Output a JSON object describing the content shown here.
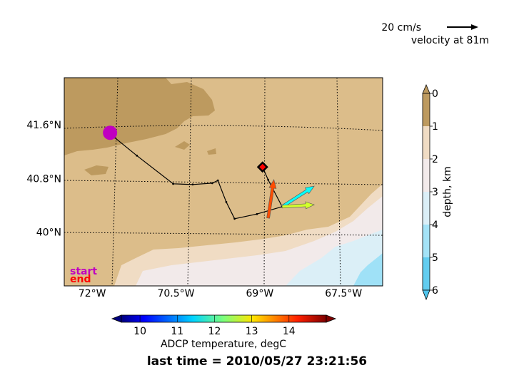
{
  "scale": {
    "label": "20 cm/s",
    "caption": "velocity at 81m"
  },
  "map": {
    "lon_ticks": [
      {
        "value": -72,
        "label": "72°W"
      },
      {
        "value": -70.5,
        "label": "70.5°W"
      },
      {
        "value": -69,
        "label": "69°W"
      },
      {
        "value": -67.5,
        "label": "67.5°W"
      }
    ],
    "lat_ticks": [
      {
        "value": 41.6,
        "label": "41.6°N"
      },
      {
        "value": 40.8,
        "label": "40.8°N"
      },
      {
        "value": 40.0,
        "label": "40°N"
      }
    ],
    "start_label": "start",
    "end_label": "end",
    "colors": {
      "start": "#c000c0",
      "end": "#ff0000",
      "land": "#bd9a5f",
      "shelf": "#dcbd8a",
      "slope": "#f0dcc4",
      "deep": "#f2eaea",
      "abyss": "#dbeff7",
      "trench": "#9fe1f7"
    }
  },
  "depth_colorbar": {
    "label": "depth, km",
    "ticks": [
      "0",
      "1",
      "2",
      "3",
      "4",
      "5",
      "6"
    ]
  },
  "temp_colorbar": {
    "label": "ADCP temperature, degC",
    "ticks": [
      "10",
      "11",
      "12",
      "13",
      "14"
    ]
  },
  "footer": {
    "last_time": "last time = 2010/05/27 23:21:56"
  },
  "chart_data": {
    "type": "map",
    "track": [
      [
        -71.6,
        41.41
      ],
      [
        -71.2,
        41.14
      ],
      [
        -70.55,
        40.72
      ],
      [
        -70.2,
        40.71
      ],
      [
        -69.85,
        40.73
      ],
      [
        -69.75,
        40.77
      ],
      [
        -69.6,
        40.45
      ],
      [
        -69.45,
        40.2
      ],
      [
        -69.05,
        40.27
      ],
      [
        -68.6,
        40.38
      ],
      [
        -68.85,
        40.78
      ],
      [
        -68.95,
        40.97
      ]
    ],
    "start": {
      "lon": -71.68,
      "lat": 41.48
    },
    "end": {
      "lon": -68.95,
      "lat": 40.97
    },
    "vectors": [
      {
        "lon": -68.85,
        "lat": 40.21,
        "u": 0.09,
        "v": 0.6,
        "temp": 13.9
      },
      {
        "lon": -68.6,
        "lat": 40.38,
        "u": 0.5,
        "v": 0.32,
        "temp": 11.6
      },
      {
        "lon": -68.6,
        "lat": 40.38,
        "u": 0.5,
        "v": 0.03,
        "temp": 12.7
      }
    ],
    "lon_range": [
      -72.5,
      -66.8
    ],
    "lat_range": [
      39.2,
      42.3
    ],
    "temp_range": [
      9.5,
      15
    ],
    "depth_range_km": [
      0,
      6
    ]
  }
}
